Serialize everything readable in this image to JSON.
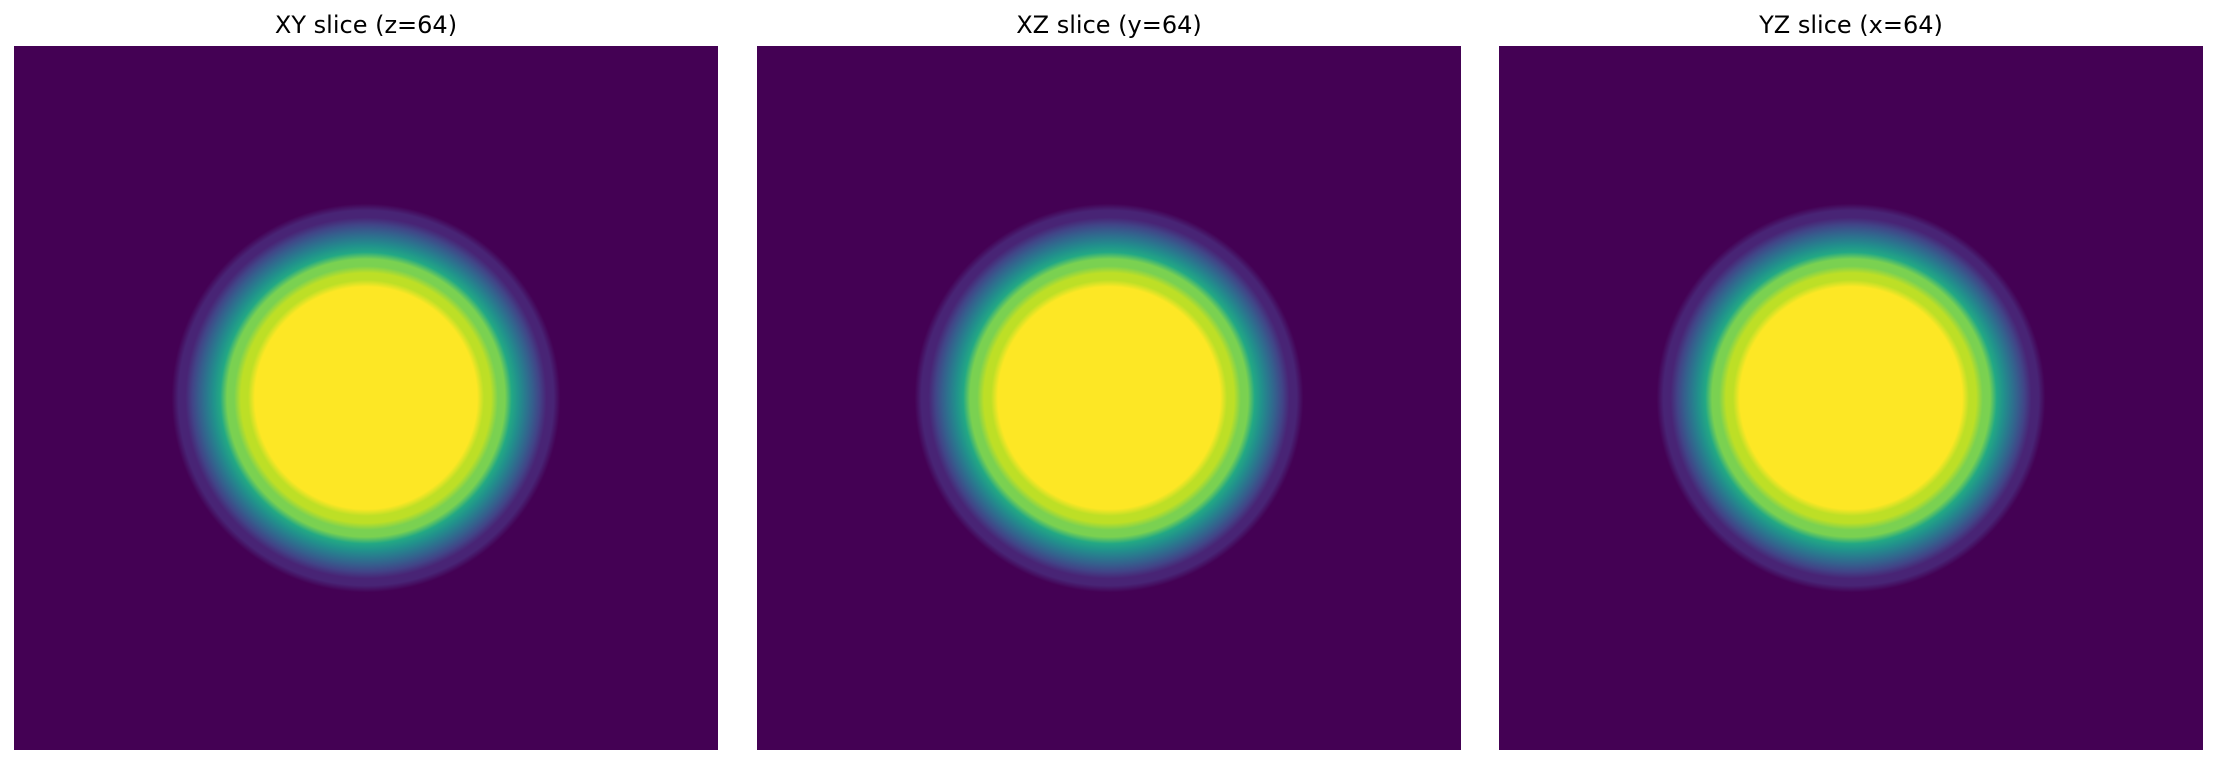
{
  "chart_data": [
    {
      "type": "heatmap",
      "title": "XY slice (z=64)",
      "colormap": "viridis",
      "axes": "off",
      "volume_size": 128,
      "blob": {
        "center_row": 64,
        "center_col": 64,
        "radius": 28,
        "edge_width": 4.5
      },
      "value_range": [
        0,
        1
      ],
      "colors": {
        "background": "#440154",
        "core": "#fde725"
      }
    },
    {
      "type": "heatmap",
      "title": "XZ slice (y=64)",
      "colormap": "viridis",
      "axes": "off",
      "volume_size": 128,
      "blob": {
        "center_row": 64,
        "center_col": 64,
        "radius": 28,
        "edge_width": 4.5
      },
      "value_range": [
        0,
        1
      ],
      "colors": {
        "background": "#440154",
        "core": "#fde725"
      }
    },
    {
      "type": "heatmap",
      "title": "YZ slice (x=64)",
      "colormap": "viridis",
      "axes": "off",
      "volume_size": 128,
      "blob": {
        "center_row": 64,
        "center_col": 64,
        "radius": 28,
        "edge_width": 4.5
      },
      "value_range": [
        0,
        1
      ],
      "colors": {
        "background": "#440154",
        "core": "#fde725"
      }
    }
  ]
}
